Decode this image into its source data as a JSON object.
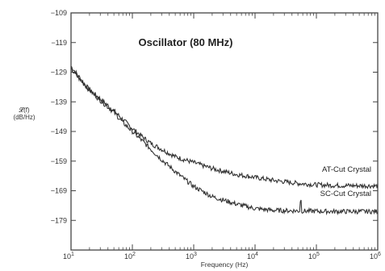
{
  "chart_data": {
    "type": "line",
    "title": "Oscillator (80 MHz)",
    "xlabel": "Frequency (Hz)",
    "ylabel_line1": "𝓛(f)",
    "ylabel_line2": "(dB/Hz)",
    "x_scale": "log",
    "xlim": [
      10,
      1000000
    ],
    "ylim": [
      -189,
      -109
    ],
    "x_ticks": [
      {
        "value": 10,
        "base": "10",
        "exp": "1"
      },
      {
        "value": 100,
        "base": "10",
        "exp": "2"
      },
      {
        "value": 1000,
        "base": "10",
        "exp": "3"
      },
      {
        "value": 10000,
        "base": "10",
        "exp": "4"
      },
      {
        "value": 100000,
        "base": "10",
        "exp": "5"
      },
      {
        "value": 1000000,
        "base": "10",
        "exp": "6"
      }
    ],
    "y_ticks": [
      {
        "value": -109,
        "label": "−109"
      },
      {
        "value": -119,
        "label": "−119"
      },
      {
        "value": -129,
        "label": "−129"
      },
      {
        "value": -139,
        "label": "−139"
      },
      {
        "value": -149,
        "label": "−149"
      },
      {
        "value": -159,
        "label": "−159"
      },
      {
        "value": -169,
        "label": "−169"
      },
      {
        "value": -179,
        "label": "−179"
      }
    ],
    "grid": false,
    "series": [
      {
        "name": "AT-Cut Crystal",
        "color": "#333333",
        "x": [
          10,
          14,
          20,
          30,
          50,
          70,
          100,
          150,
          200,
          300,
          500,
          700,
          1000,
          2000,
          5000,
          10000,
          20000,
          50000,
          100000,
          200000,
          500000,
          1000000
        ],
        "y": [
          -127,
          -131,
          -135,
          -138,
          -142,
          -145,
          -148,
          -151,
          -153,
          -155,
          -157.5,
          -158.5,
          -159.5,
          -161.5,
          -163.5,
          -164.5,
          -165.5,
          -166.5,
          -167,
          -167.2,
          -167.3,
          -167.4
        ]
      },
      {
        "name": "SC-Cut Crystal",
        "color": "#333333",
        "x": [
          10,
          14,
          20,
          30,
          50,
          70,
          100,
          150,
          200,
          300,
          500,
          700,
          1000,
          2000,
          5000,
          10000,
          20000,
          50000,
          100000,
          200000,
          500000,
          1000000
        ],
        "y": [
          -128,
          -131.5,
          -135,
          -138.5,
          -142.5,
          -146,
          -149,
          -152.5,
          -155,
          -158.5,
          -162.5,
          -165,
          -167.5,
          -171,
          -173.5,
          -175,
          -175.6,
          -175.8,
          -175.9,
          -176,
          -176,
          -176
        ]
      }
    ],
    "annotations": [
      {
        "text": "AT-Cut Crystal",
        "series": 0
      },
      {
        "text": "SC-Cut Crystal",
        "series": 1
      }
    ]
  }
}
